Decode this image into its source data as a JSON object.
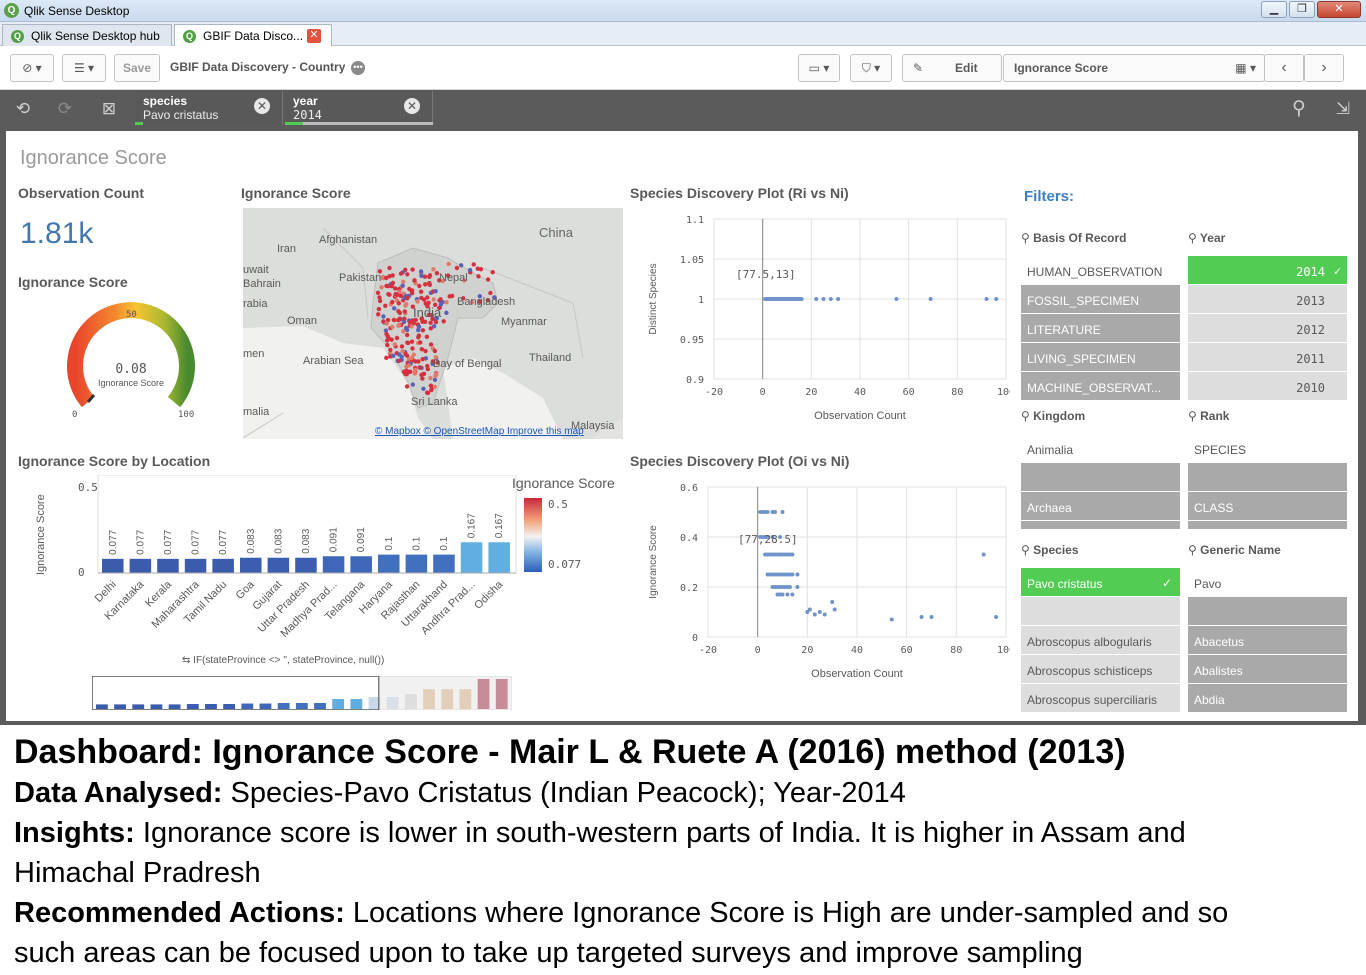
{
  "window": {
    "title": "Qlik Sense Desktop"
  },
  "tabs": [
    {
      "label": "Qlik Sense Desktop hub"
    },
    {
      "label": "GBIF Data Disco..."
    }
  ],
  "toolbar": {
    "save": "Save",
    "app_title": "GBIF Data Discovery - Country",
    "edit": "Edit",
    "sheet_name": "Ignorance Score"
  },
  "selections": [
    {
      "field": "species",
      "value": "Pavo cristatus"
    },
    {
      "field": "year",
      "value": "2014"
    }
  ],
  "sheet": {
    "title": "Ignorance Score"
  },
  "kpi": {
    "title": "Observation Count",
    "value": "1.81k"
  },
  "gauge": {
    "title": "Ignorance Score",
    "value": 0.08,
    "value_label": "0.08",
    "label": "Ignorance Score",
    "min": "0",
    "mid": "50",
    "max": "100"
  },
  "map": {
    "title": "Ignorance Score",
    "labels": [
      "China",
      "Afghanistan",
      "Iran",
      "Pakistan",
      "Nepal",
      "India",
      "Bangladesh",
      "Myanmar",
      "Oman",
      "Arabian Sea",
      "Bay of Bengal",
      "Thailand",
      "Sri Lanka",
      "Malaysia",
      "uwait",
      "Bahrain",
      "rabia",
      "men",
      "malia"
    ],
    "credit1": "© Mapbox",
    "credit2": "© OpenStreetMap",
    "credit3": "Improve this map"
  },
  "bar_chart": {
    "title": "Ignorance Score by Location",
    "ylabel": "Ignorance Score",
    "legend_title": "Ignorance Score",
    "legend_max": "0.5",
    "legend_min": "0.077",
    "dimension_expr": "IF(stateProvince <> '', stateProvince, null())"
  },
  "scatter1": {
    "title": "Species Discovery Plot (Ri vs Ni)",
    "xlabel": "Observation Count",
    "ylabel": "Distinct Species",
    "annotation": "[77.5,13]"
  },
  "scatter2": {
    "title": "Species Discovery Plot (Oi vs Ni)",
    "xlabel": "Observation Count",
    "ylabel": "Ignorance Score",
    "annotation": "[77,28.5]"
  },
  "chart_data": [
    {
      "type": "bar",
      "title": "Ignorance Score by Location",
      "ylabel": "Ignorance Score",
      "ylim": [
        0,
        0.5
      ],
      "yticks": [
        "0",
        "0.5"
      ],
      "categories": [
        "Delhi",
        "Karnataka",
        "Kerala",
        "Maharashtra",
        "Tamil Nadu",
        "Goa",
        "Gujarat",
        "Uttar Pradesh",
        "Madhya Prad...",
        "Telangana",
        "Haryana",
        "Rajasthan",
        "Uttarakhand",
        "Andhra Prad...",
        "Odisha"
      ],
      "values": [
        0.077,
        0.077,
        0.077,
        0.077,
        0.077,
        0.083,
        0.083,
        0.083,
        0.091,
        0.091,
        0.1,
        0.1,
        0.1,
        0.167,
        0.167
      ],
      "labels": [
        "0.077",
        "0.077",
        "0.077",
        "0.077",
        "0.077",
        "0.083",
        "0.083",
        "0.083",
        "0.091",
        "0.091",
        "0.1",
        "0.1",
        "0.1",
        "0.167",
        "0.167"
      ],
      "colors": [
        "#3b5bad",
        "#3b5bad",
        "#3b5bad",
        "#3b5bad",
        "#3b5bad",
        "#3c5eb0",
        "#3c5eb0",
        "#3c5eb0",
        "#3f66b8",
        "#3f66b8",
        "#4170be",
        "#4170be",
        "#4170be",
        "#62aee0",
        "#62aee0"
      ],
      "minimap": {
        "values": [
          0.077,
          0.077,
          0.077,
          0.077,
          0.077,
          0.083,
          0.083,
          0.083,
          0.091,
          0.091,
          0.1,
          0.1,
          0.1,
          0.167,
          0.167,
          0.2,
          0.2,
          0.25,
          0.33,
          0.33,
          0.33,
          0.5,
          0.5
        ],
        "colors": [
          "#3b5bad",
          "#3b5bad",
          "#3b5bad",
          "#3b5bad",
          "#3b5bad",
          "#3c5eb0",
          "#3c5eb0",
          "#3c5eb0",
          "#3f66b8",
          "#3f66b8",
          "#4170be",
          "#4170be",
          "#4170be",
          "#62aee0",
          "#62aee0",
          "#c9d9ea",
          "#c9d9ea",
          "#d6d6d6",
          "#e0b186",
          "#e0b186",
          "#e0b186",
          "#a5213a",
          "#a5213a"
        ]
      }
    },
    {
      "type": "scatter",
      "title": "Species Discovery Plot (Ri vs Ni)",
      "xlabel": "Observation Count",
      "ylabel": "Distinct Species",
      "xlim": [
        -20,
        100
      ],
      "ylim": [
        0.9,
        1.1
      ],
      "xticks": [
        "-20",
        "0",
        "20",
        "40",
        "60",
        "80",
        "100"
      ],
      "yticks": [
        "1.1",
        "1.05",
        "1",
        "0.95",
        "0.9"
      ],
      "annotation": "[77.5,13]",
      "x": [
        1,
        1.5,
        2,
        2.5,
        3,
        3.5,
        4,
        4.5,
        5,
        5.5,
        6,
        6.5,
        7,
        7.5,
        8,
        8.5,
        9,
        9.5,
        10,
        10.5,
        11,
        11.5,
        12,
        12.5,
        13,
        13.5,
        14,
        14.5,
        15,
        15.5,
        16,
        22,
        25,
        28,
        31,
        55,
        69,
        92,
        96
      ],
      "y": [
        1,
        1,
        1,
        1,
        1,
        1,
        1,
        1,
        1,
        1,
        1,
        1,
        1,
        1,
        1,
        1,
        1,
        1,
        1,
        1,
        1,
        1,
        1,
        1,
        1,
        1,
        1,
        1,
        1,
        1,
        1,
        1,
        1,
        1,
        1,
        1,
        1,
        1,
        1
      ]
    },
    {
      "type": "scatter",
      "title": "Species Discovery Plot (Oi vs Ni)",
      "xlabel": "Observation Count",
      "ylabel": "Ignorance Score",
      "xlim": [
        -20,
        100
      ],
      "ylim": [
        0,
        0.6
      ],
      "xticks": [
        "-20",
        "0",
        "20",
        "40",
        "60",
        "80",
        "100"
      ],
      "yticks": [
        "0.6",
        "0.4",
        "0.2",
        "0"
      ],
      "annotation": "[77,28.5]",
      "x": [
        1,
        2,
        3,
        4,
        6,
        1,
        2,
        3,
        4,
        6,
        7,
        9,
        10,
        3,
        4,
        5,
        6,
        7,
        8,
        9,
        10,
        11,
        12,
        13,
        14,
        4,
        5,
        6,
        7,
        8,
        9,
        10,
        11,
        12,
        13,
        14,
        16,
        6,
        7,
        8,
        9,
        10,
        11,
        12,
        13,
        8,
        9,
        10,
        12,
        14,
        16,
        20,
        21,
        23,
        25,
        27,
        31,
        30,
        54,
        66,
        70,
        91,
        96
      ],
      "y": [
        0.5,
        0.5,
        0.5,
        0.5,
        0.5,
        0.4,
        0.4,
        0.4,
        0.4,
        0.4,
        0.5,
        0.4,
        0.5,
        0.33,
        0.33,
        0.33,
        0.33,
        0.33,
        0.33,
        0.33,
        0.33,
        0.33,
        0.33,
        0.33,
        0.33,
        0.25,
        0.25,
        0.25,
        0.25,
        0.25,
        0.25,
        0.25,
        0.25,
        0.25,
        0.25,
        0.25,
        0.25,
        0.2,
        0.2,
        0.2,
        0.2,
        0.2,
        0.2,
        0.2,
        0.2,
        0.17,
        0.17,
        0.17,
        0.17,
        0.17,
        0.2,
        0.1,
        0.11,
        0.09,
        0.1,
        0.09,
        0.11,
        0.14,
        0.07,
        0.08,
        0.08,
        0.33,
        0.08
      ]
    }
  ],
  "filters": {
    "title": "Filters:",
    "basis": {
      "label": "Basis Of Record",
      "items": [
        "HUMAN_OBSERVATION",
        "FOSSIL_SPECIMEN",
        "LITERATURE",
        "LIVING_SPECIMEN",
        "MACHINE_OBSERVAT..."
      ]
    },
    "year": {
      "label": "Year",
      "items": [
        "2014",
        "2013",
        "2012",
        "2011",
        "2010"
      ]
    },
    "kingdom": {
      "label": "Kingdom",
      "items": [
        "Animalia",
        "",
        "Archaea"
      ]
    },
    "rank": {
      "label": "Rank",
      "items": [
        "SPECIES",
        "",
        "CLASS"
      ]
    },
    "species": {
      "label": "Species",
      "items": [
        "Pavo cristatus",
        "",
        "Abroscopus albogularis",
        "Abroscopus schisticeps",
        "Abroscopus superciliaris"
      ]
    },
    "generic": {
      "label": "Generic Name",
      "items": [
        "Pavo",
        "",
        "Abacetus",
        "Abalistes",
        "Abdia"
      ]
    }
  },
  "caption": {
    "dashboard_bold": "Dashboard: Ignorance Score - Mair L & Ruete A (2016) method (2013)",
    "analysed_bold": "Data Analysed:",
    "analysed": " Species-Pavo Cristatus (Indian Peacock); Year-2014",
    "insights_bold": "Insights:",
    "insights1": " Ignorance score is lower in south-western parts of India. It is higher in Assam and",
    "insights2": "Himachal Pradresh",
    "actions_bold": "Recommended Actions:",
    "actions1": " Locations where Ignorance Score is High are under-sampled and so",
    "actions2": "such areas can be focused upon to take up targeted surveys and improve sampling"
  }
}
